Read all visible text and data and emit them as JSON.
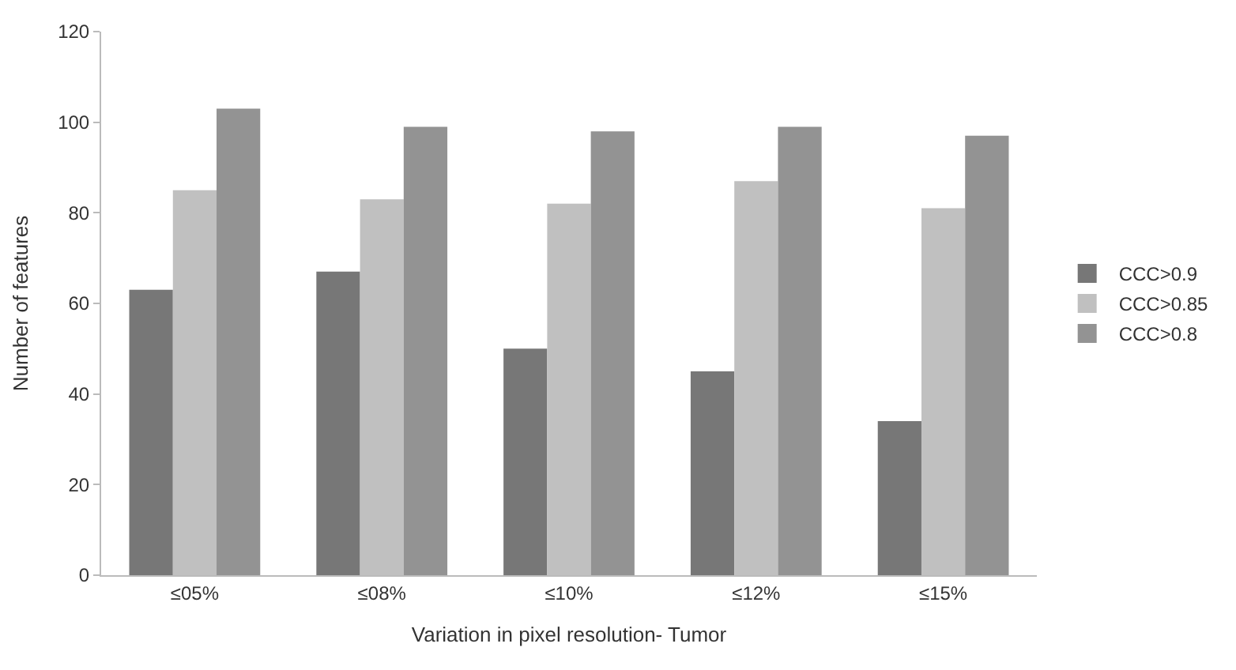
{
  "chart_data": {
    "type": "bar",
    "xlabel": "Variation in pixel resolution- Tumor",
    "ylabel": "Number of features",
    "categories": [
      "≤05%",
      "≤08%",
      "≤10%",
      "≤12%",
      "≤15%"
    ],
    "series": [
      {
        "name": "CCC>0.9",
        "color": "#777777",
        "values": [
          63,
          67,
          50,
          45,
          34
        ]
      },
      {
        "name": "CCC>0.85",
        "color": "#c0c0c0",
        "values": [
          85,
          83,
          82,
          87,
          81
        ]
      },
      {
        "name": "CCC>0.8",
        "color": "#939393",
        "values": [
          103,
          99,
          98,
          99,
          97
        ]
      }
    ],
    "ylim": [
      0,
      120
    ],
    "yticks": [
      0,
      20,
      40,
      60,
      80,
      100,
      120
    ],
    "grid": false,
    "legend": "right"
  }
}
